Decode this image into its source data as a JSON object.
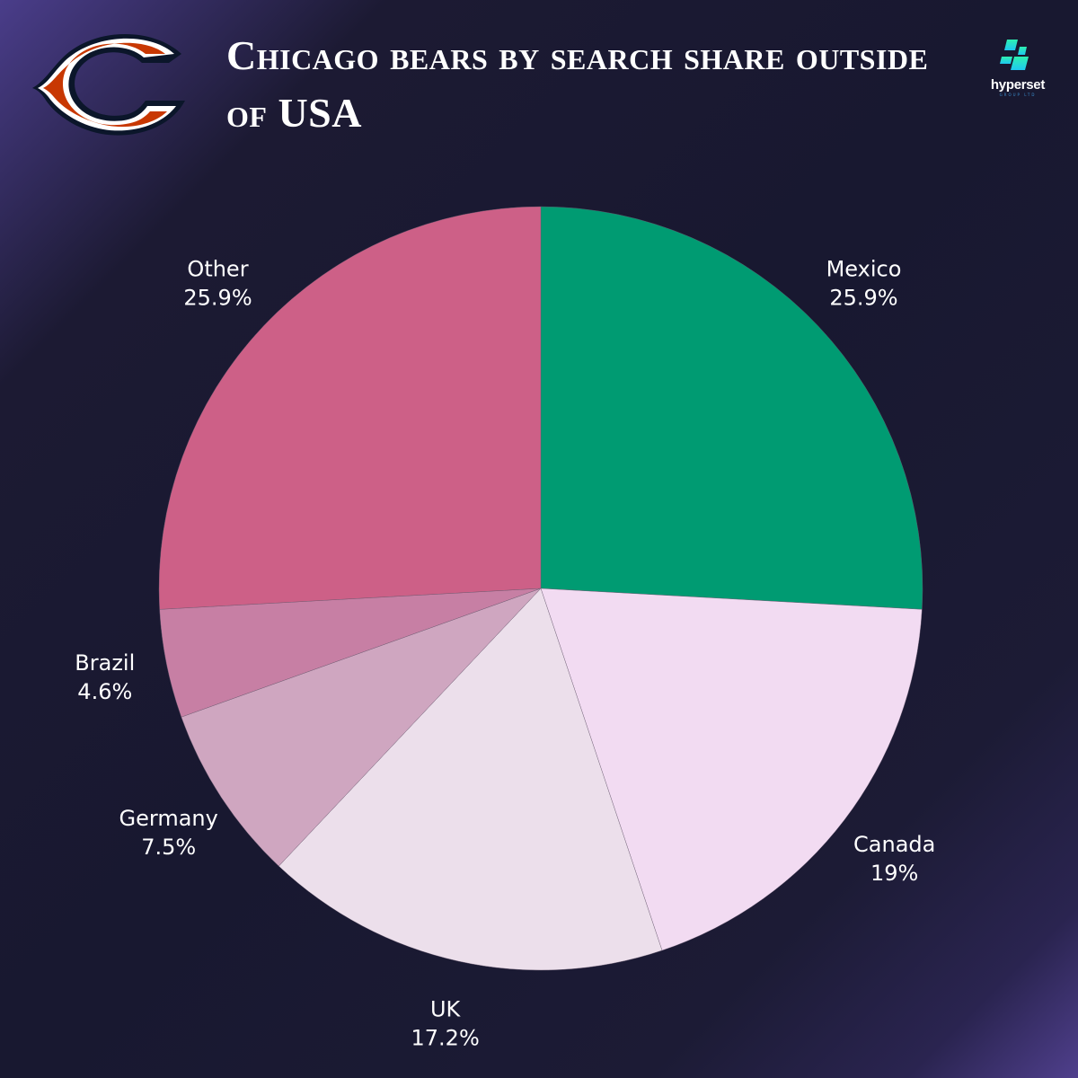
{
  "header": {
    "title": "Chicago bears by search share outside of USA"
  },
  "brand": {
    "name": "hyperset",
    "tagline": "GROUP LTD",
    "icon": "hyperset-logo-icon",
    "logo": "chicago-bears-c-logo-icon"
  },
  "colors": {
    "background": "#181830",
    "accent": "#009b72"
  },
  "chart_data": {
    "type": "pie",
    "title": "Chicago bears by search share outside of USA",
    "start": "top",
    "direction": "clockwise",
    "categories": [
      "Mexico",
      "Canada",
      "UK",
      "Germany",
      "Brazil",
      "Other"
    ],
    "values": [
      25.9,
      19,
      17.2,
      7.5,
      4.6,
      25.9
    ],
    "labels": [
      "25.9%",
      "19%",
      "17.2%",
      "7.5%",
      "4.6%",
      "25.9%"
    ],
    "colors": [
      "#009b72",
      "#f2dbf2",
      "#ecdfeb",
      "#cfa6c0",
      "#c77fa4",
      "#cd6087"
    ],
    "legend": "none"
  }
}
